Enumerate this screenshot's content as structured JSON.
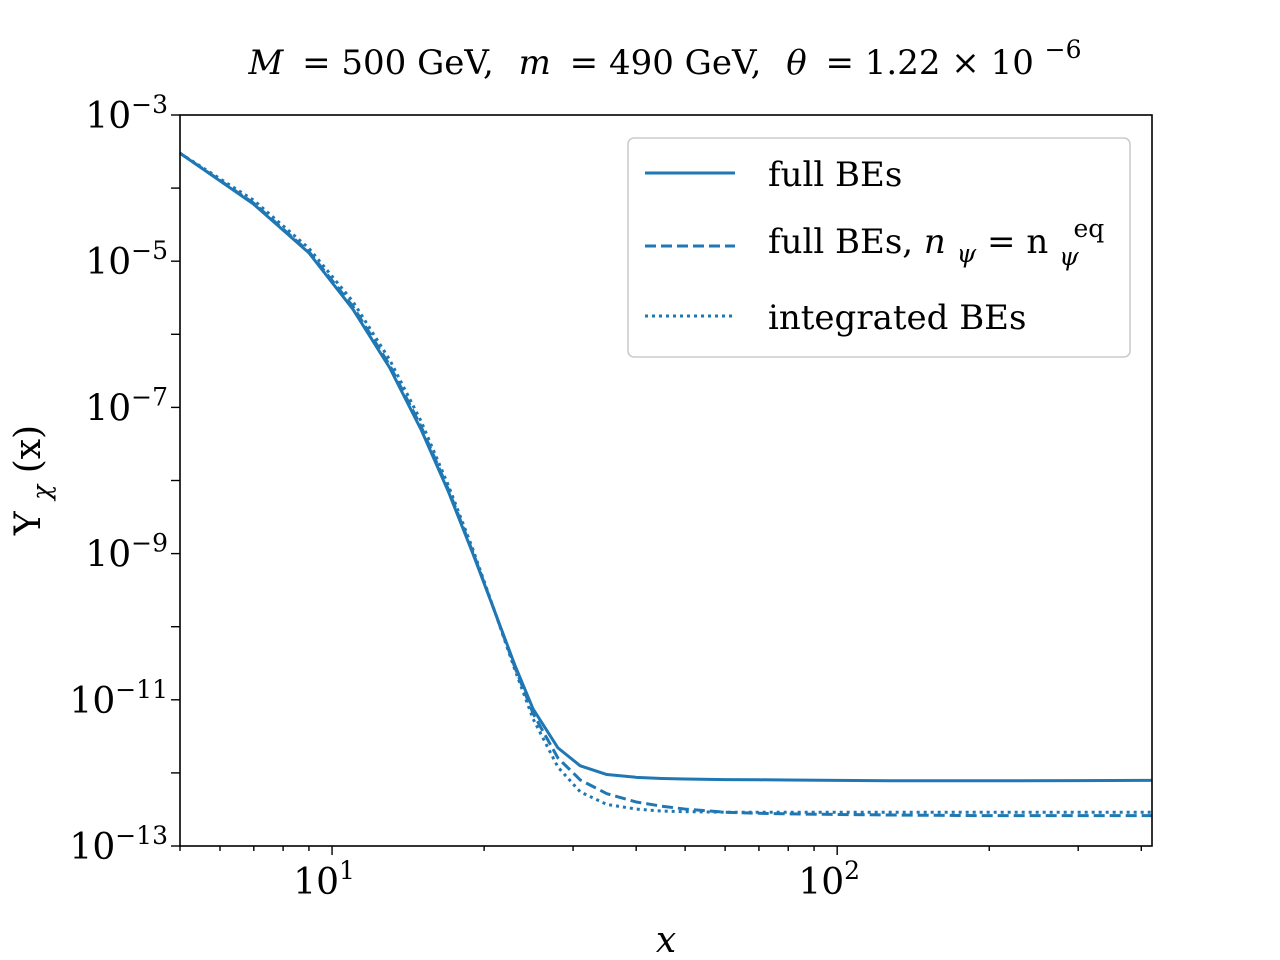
{
  "chart_data": {
    "type": "line",
    "title": {
      "M_label": "M",
      "M_value": "= 500 GeV,",
      "m_label": "m",
      "m_value": "= 490 GeV,",
      "theta_label": "θ",
      "theta_value": "= 1.22 × 10",
      "theta_exp": "−6"
    },
    "xlabel": "x",
    "ylabel_main": "Y",
    "ylabel_sub": "χ",
    "ylabel_tail": "(x)",
    "xscale": "log",
    "yscale": "log",
    "xlim": [
      5,
      420
    ],
    "ylim": [
      1e-13,
      0.001
    ],
    "color": "#1f77b4",
    "xticks": [
      {
        "value": 10,
        "base": "10",
        "exp": "1"
      },
      {
        "value": 100,
        "base": "10",
        "exp": "2"
      }
    ],
    "yticks": [
      {
        "value": 0.001,
        "base": "10",
        "exp": "−3"
      },
      {
        "value": 1e-05,
        "base": "10",
        "exp": "−5"
      },
      {
        "value": 1e-07,
        "base": "10",
        "exp": "−7"
      },
      {
        "value": 1e-09,
        "base": "10",
        "exp": "−9"
      },
      {
        "value": 1e-11,
        "base": "10",
        "exp": "−11"
      },
      {
        "value": 1e-13,
        "base": "10",
        "exp": "−13"
      }
    ],
    "legend": {
      "position": "top-right",
      "entries": [
        {
          "label": "full BEs",
          "style": "solid"
        },
        {
          "label_prefix": "full BEs, ",
          "n": "n",
          "sub": "ψ",
          "eq": " = n",
          "sub2": "ψ",
          "sup2": "eq",
          "style": "dashed"
        },
        {
          "label": "integrated BEs",
          "style": "dotted"
        }
      ]
    },
    "series": [
      {
        "name": "full BEs",
        "style": "solid",
        "x": [
          5,
          7,
          9,
          11,
          13,
          15,
          17,
          19,
          21,
          23,
          25,
          28,
          31,
          35,
          40,
          45,
          50,
          60,
          70,
          80,
          100,
          130,
          200,
          300,
          420
        ],
        "y": [
          0.0003,
          6e-05,
          1.3e-05,
          2.2e-06,
          3.5e-07,
          5e-08,
          7e-09,
          1e-09,
          1.6e-10,
          3e-11,
          7.5e-12,
          2.2e-12,
          1.25e-12,
          9.5e-13,
          8.7e-13,
          8.4e-13,
          8.25e-13,
          8.1e-13,
          8.05e-13,
          8e-13,
          7.9e-13,
          7.8e-13,
          7.8e-13,
          7.85e-13,
          7.9e-13
        ]
      },
      {
        "name": "full BEs, n_psi = n_psi^eq",
        "style": "dashed",
        "x": [
          5,
          7,
          9,
          11,
          13,
          15,
          17,
          19,
          21,
          23,
          25,
          28,
          31,
          35,
          40,
          45,
          50,
          60,
          70,
          80,
          100,
          130,
          200,
          300,
          420
        ],
        "y": [
          0.0003,
          6.2e-05,
          1.35e-05,
          2.4e-06,
          3.8e-07,
          5.5e-08,
          7.5e-09,
          1.05e-09,
          1.6e-10,
          2.8e-11,
          6.5e-12,
          1.6e-12,
          8e-13,
          5.2e-13,
          4e-13,
          3.5e-13,
          3.2e-13,
          2.9e-13,
          2.8e-13,
          2.75e-13,
          2.7e-13,
          2.65e-13,
          2.6e-13,
          2.6e-13,
          2.6e-13
        ]
      },
      {
        "name": "integrated BEs",
        "style": "dotted",
        "x": [
          5,
          7,
          9,
          11,
          13,
          15,
          17,
          19,
          21,
          23,
          25,
          28,
          31,
          35,
          40,
          45,
          50,
          60,
          70,
          80,
          100,
          130,
          200,
          300,
          420
        ],
        "y": [
          0.0003,
          6.8e-05,
          1.5e-05,
          2.8e-06,
          4.5e-07,
          6.5e-08,
          8.5e-09,
          1.15e-09,
          1.6e-10,
          2.6e-11,
          5.5e-12,
          1.2e-12,
          5.5e-13,
          3.7e-13,
          3.2e-13,
          3e-13,
          2.95e-13,
          2.9e-13,
          2.9e-13,
          2.9e-13,
          2.9e-13,
          2.9e-13,
          2.9e-13,
          2.9e-13,
          2.9e-13
        ]
      }
    ]
  }
}
